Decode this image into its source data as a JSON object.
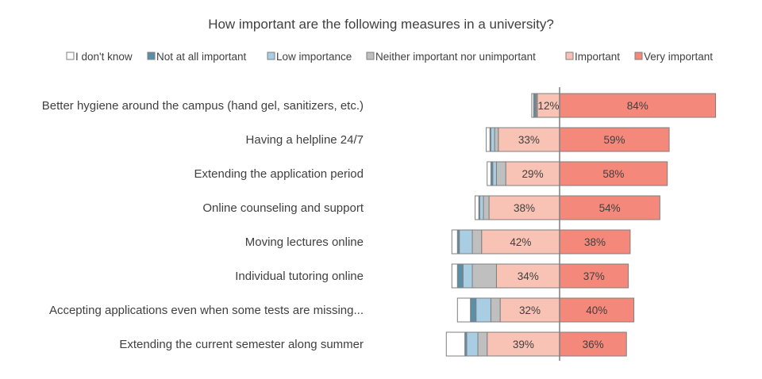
{
  "chart_data": {
    "type": "bar",
    "subtype": "diverging-stacked-horizontal",
    "title": "How important are the following measures in a university?",
    "legend": [
      {
        "name": "I don't know",
        "color": "#ffffff"
      },
      {
        "name": "Not at all important",
        "color": "#5b8fa8"
      },
      {
        "name": "Low importance",
        "color": "#a9cde3"
      },
      {
        "name": "Neither important nor unimportant",
        "color": "#bfbfbf"
      },
      {
        "name": "Important",
        "color": "#f8c2b4"
      },
      {
        "name": "Very important",
        "color": "#f4887a"
      }
    ],
    "categories": [
      "Better hygiene around the campus (hand gel, sanitizers, etc.)",
      "Having a helpline 24/7",
      "Extending the application period",
      "Online counseling and support",
      "Moving lectures online",
      "Individual tutoring online",
      "Accepting applications even when some tests are missing...",
      "Extending the current semester along summer"
    ],
    "series": [
      {
        "name": "I don't know",
        "values": [
          1,
          2,
          2,
          2,
          3,
          3,
          7,
          10
        ]
      },
      {
        "name": "Not at all important",
        "values": [
          1,
          0.5,
          1,
          0.5,
          1,
          3,
          3,
          1
        ]
      },
      {
        "name": "Low importance",
        "values": [
          0.5,
          2,
          2,
          2,
          7,
          5,
          8,
          6
        ]
      },
      {
        "name": "Neither important nor unimportant",
        "values": [
          0.5,
          2,
          5,
          3,
          5,
          13,
          5,
          5
        ]
      },
      {
        "name": "Important",
        "values": [
          12,
          33,
          29,
          38,
          42,
          34,
          32,
          39
        ]
      },
      {
        "name": "Very important",
        "values": [
          84,
          59,
          58,
          54,
          38,
          37,
          40,
          36
        ]
      }
    ],
    "labels": {
      "Important": [
        "12%",
        "33%",
        "29%",
        "38%",
        "42%",
        "34%",
        "32%",
        "39%"
      ],
      "Very important": [
        "84%",
        "59%",
        "58%",
        "54%",
        "38%",
        "37%",
        "40%",
        "36%"
      ]
    },
    "xlabel": "",
    "ylabel": ""
  }
}
